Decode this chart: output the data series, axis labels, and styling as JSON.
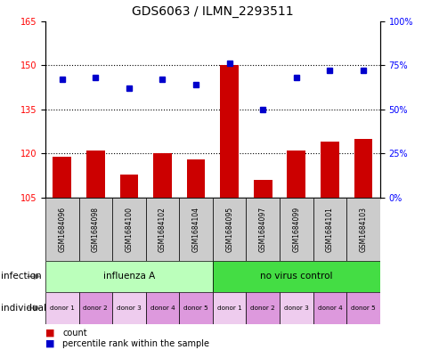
{
  "title": "GDS6063 / ILMN_2293511",
  "samples": [
    "GSM1684096",
    "GSM1684098",
    "GSM1684100",
    "GSM1684102",
    "GSM1684104",
    "GSM1684095",
    "GSM1684097",
    "GSM1684099",
    "GSM1684101",
    "GSM1684103"
  ],
  "counts": [
    119,
    121,
    113,
    120,
    118,
    150,
    111,
    121,
    124,
    125
  ],
  "percentiles": [
    67,
    68,
    62,
    67,
    64,
    76,
    50,
    68,
    72,
    72
  ],
  "ylim_left": [
    105,
    165
  ],
  "yticks_left": [
    105,
    120,
    135,
    150,
    165
  ],
  "ylim_right": [
    0,
    100
  ],
  "yticks_right": [
    0,
    25,
    50,
    75,
    100
  ],
  "bar_color": "#cc0000",
  "dot_color": "#0000cc",
  "infection_labels": [
    "influenza A",
    "no virus control"
  ],
  "infection_colors": [
    "#bbffbb",
    "#44dd44"
  ],
  "individual_labels": [
    "donor 1",
    "donor 2",
    "donor 3",
    "donor 4",
    "donor 5",
    "donor 1",
    "donor 2",
    "donor 3",
    "donor 4",
    "donor 5"
  ],
  "individual_colors": [
    "#eeccee",
    "#dd99dd",
    "#eeccee",
    "#dd99dd",
    "#dd99dd",
    "#eeccee",
    "#dd99dd",
    "#eeccee",
    "#dd99dd",
    "#dd99dd"
  ],
  "sample_bg_color": "#cccccc",
  "title_fontsize": 10,
  "tick_fontsize": 7,
  "label_fontsize": 7.5
}
